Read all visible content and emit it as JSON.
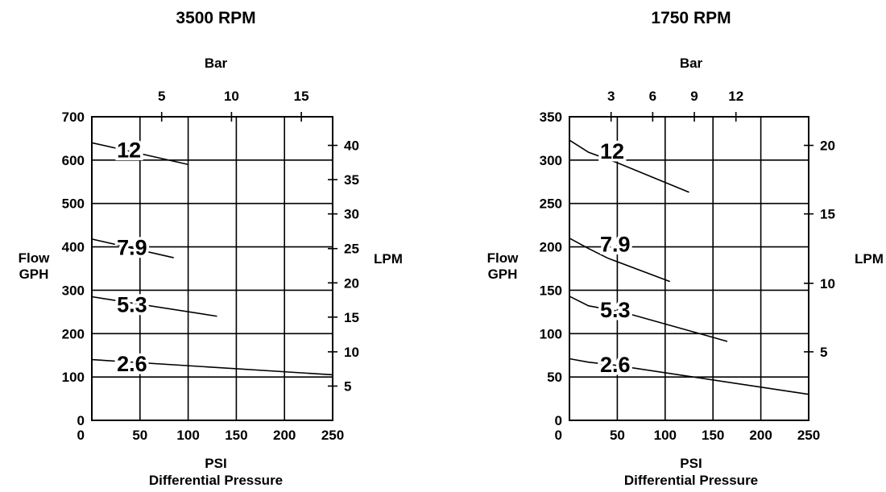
{
  "chart_data": [
    {
      "type": "line",
      "title": "3500 RPM",
      "xlabel": "PSI",
      "xlabel_sub": "Differential Pressure",
      "ylabel": "Flow",
      "ylabel_sub": "GPH",
      "y2label": "LPM",
      "top_axis_label": "Bar",
      "xlim": [
        0,
        250
      ],
      "ylim": [
        0,
        700
      ],
      "x_ticks": [
        "50",
        "100",
        "150",
        "200",
        "250"
      ],
      "y_ticks": [
        "0",
        "100",
        "200",
        "300",
        "400",
        "500",
        "600",
        "700"
      ],
      "top_ticks": [
        "5",
        "10",
        "15"
      ],
      "top_tick_values_psi": [
        72.5,
        145,
        217.5
      ],
      "right_ticks": [
        "5",
        "10",
        "15",
        "20",
        "25",
        "30",
        "35",
        "40"
      ],
      "right_tick_values_gph": [
        79,
        158,
        238,
        317,
        396,
        476,
        555,
        634
      ],
      "grid_x": [
        50,
        100,
        150,
        200
      ],
      "grid_y": [
        100,
        200,
        300,
        400,
        500,
        600
      ],
      "series": [
        {
          "name": "12",
          "x": [
            0,
            100
          ],
          "y": [
            640,
            590
          ]
        },
        {
          "name": "7.9",
          "x": [
            0,
            85
          ],
          "y": [
            418,
            375
          ]
        },
        {
          "name": "5.3",
          "x": [
            0,
            130
          ],
          "y": [
            285,
            240
          ]
        },
        {
          "name": "2.6",
          "x": [
            0,
            250
          ],
          "y": [
            140,
            105
          ]
        }
      ],
      "labels": [
        {
          "text": "12",
          "x": 26,
          "y": 625
        },
        {
          "text": "7.9",
          "x": 26,
          "y": 400
        },
        {
          "text": "5.3",
          "x": 26,
          "y": 268
        },
        {
          "text": "2.6",
          "x": 26,
          "y": 132
        }
      ]
    },
    {
      "type": "line",
      "title": "1750 RPM",
      "xlabel": "PSI",
      "xlabel_sub": "Differential Pressure",
      "ylabel": "Flow",
      "ylabel_sub": "GPH",
      "y2label": "LPM",
      "top_axis_label": "Bar",
      "xlim": [
        0,
        250
      ],
      "ylim": [
        0,
        350
      ],
      "x_ticks": [
        "50",
        "100",
        "150",
        "200",
        "250"
      ],
      "y_ticks": [
        "0",
        "50",
        "100",
        "150",
        "200",
        "250",
        "300",
        "350"
      ],
      "top_ticks": [
        "3",
        "6",
        "9",
        "12"
      ],
      "top_tick_values_psi": [
        43.5,
        87,
        130.5,
        174
      ],
      "right_ticks": [
        "5",
        "10",
        "15",
        "20"
      ],
      "right_tick_values_gph": [
        79,
        158,
        238,
        317
      ],
      "grid_x": [
        50,
        100,
        150,
        200
      ],
      "grid_y": [
        50,
        100,
        150,
        200,
        250,
        300
      ],
      "series": [
        {
          "name": "12",
          "x": [
            0,
            20,
            50,
            125
          ],
          "y": [
            323,
            309,
            297,
            263
          ]
        },
        {
          "name": "7.9",
          "x": [
            0,
            20,
            40,
            105
          ],
          "y": [
            210,
            198,
            187,
            160
          ]
        },
        {
          "name": "5.3",
          "x": [
            0,
            20,
            55,
            165
          ],
          "y": [
            143,
            132,
            125,
            91
          ]
        },
        {
          "name": "2.6",
          "x": [
            0,
            20,
            45,
            250
          ],
          "y": [
            71,
            67,
            64,
            30
          ]
        }
      ],
      "labels": [
        {
          "text": "12",
          "x": 32,
          "y": 311
        },
        {
          "text": "7.9",
          "x": 32,
          "y": 204
        },
        {
          "text": "5.3",
          "x": 32,
          "y": 128
        },
        {
          "text": "2.6",
          "x": 32,
          "y": 65
        }
      ]
    }
  ]
}
